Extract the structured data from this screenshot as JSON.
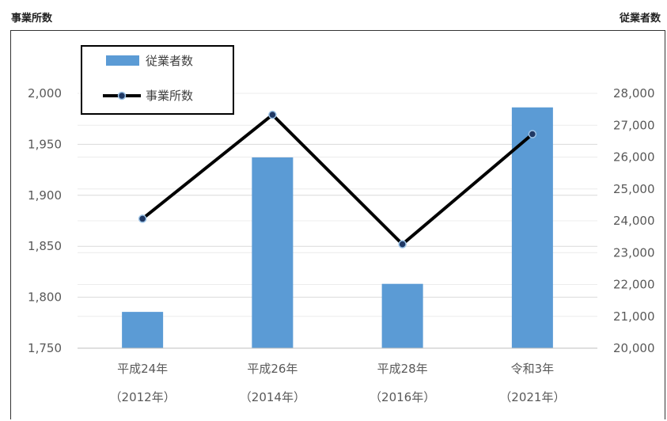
{
  "axis_units": {
    "left": "事業所数",
    "right": "従業者数"
  },
  "chart_data": {
    "type": "bar",
    "categories": [
      {
        "line1": "平成24年",
        "line2": "（2012年）"
      },
      {
        "line1": "平成26年",
        "line2": "（2014年）"
      },
      {
        "line1": "平成28年",
        "line2": "（2016年）"
      },
      {
        "line1": "令和3年",
        "line2": "（2021年）"
      }
    ],
    "series": [
      {
        "name": "従業者数",
        "type": "bar",
        "axis": "right",
        "color": "#5B9BD5",
        "values": [
          21140,
          25990,
          22020,
          27560
        ]
      },
      {
        "name": "事業所数",
        "type": "line",
        "axis": "left",
        "color": "#000000",
        "values": [
          1877,
          1979,
          1852,
          1960
        ]
      }
    ],
    "left_axis": {
      "min": 1750,
      "max": 2000,
      "step": 50,
      "ticks": [
        "1,750",
        "1,800",
        "1,850",
        "1,900",
        "1,950",
        "2,000"
      ]
    },
    "right_axis": {
      "min": 20000,
      "max": 28000,
      "step": 1000,
      "ticks": [
        "20,000",
        "21,000",
        "22,000",
        "23,000",
        "24,000",
        "25,000",
        "26,000",
        "27,000",
        "28,000"
      ]
    },
    "grid": true,
    "legend_position": "top-left"
  }
}
